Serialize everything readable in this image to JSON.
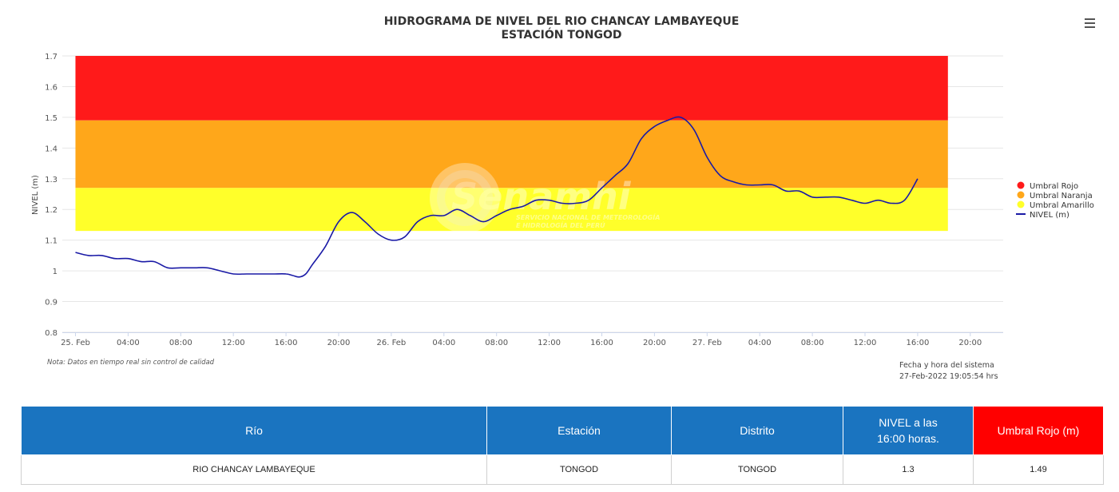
{
  "chart_data": {
    "type": "line",
    "title": "HIDROGRAMA DE NIVEL DEL RIO CHANCAY LAMBAYEQUE",
    "subtitle": "ESTACIÓN TONGOD",
    "xlabel": "",
    "ylabel": "NIVEL (m)",
    "ylim": [
      0.8,
      1.7
    ],
    "y_ticks": [
      "0.8",
      "0.9",
      "1",
      "1.1",
      "1.2",
      "1.3",
      "1.4",
      "1.5",
      "1.6",
      "1.7"
    ],
    "x_ticks": [
      "25. Feb",
      "04:00",
      "08:00",
      "12:00",
      "16:00",
      "20:00",
      "26. Feb",
      "04:00",
      "08:00",
      "12:00",
      "16:00",
      "20:00",
      "27. Feb",
      "04:00",
      "08:00",
      "12:00",
      "16:00",
      "20:00"
    ],
    "x_unit": "hours since 25. Feb 00:00",
    "xlim": [
      -1,
      70.5
    ],
    "grid": true,
    "legend_position": "right",
    "bands": [
      {
        "name": "Umbral Rojo",
        "from": 1.49,
        "to": 1.7,
        "color": "#ff1a1a"
      },
      {
        "name": "Umbral Naranja",
        "from": 1.27,
        "to": 1.49,
        "color": "#ffa71a"
      },
      {
        "name": "Umbral Amarillo",
        "from": 1.13,
        "to": 1.27,
        "color": "#ffff2a"
      }
    ],
    "series": [
      {
        "name": "NIVEL (m)",
        "color": "#1a1aa6",
        "x": [
          0,
          1,
          2,
          3,
          4,
          5,
          6,
          7,
          8,
          9,
          10,
          11,
          12,
          13,
          14,
          15,
          16,
          16.5,
          17,
          17.5,
          18,
          19,
          20,
          21,
          22,
          23,
          24,
          25,
          26,
          27,
          28,
          29,
          30,
          31,
          32,
          33,
          34,
          35,
          36,
          37,
          38,
          39,
          40,
          41,
          42,
          43,
          44,
          45,
          46,
          47,
          48,
          49,
          50,
          51,
          52,
          53,
          54,
          55,
          56,
          57,
          58,
          59,
          60,
          61,
          62,
          63,
          64
        ],
        "y": [
          1.06,
          1.05,
          1.05,
          1.04,
          1.04,
          1.03,
          1.03,
          1.01,
          1.01,
          1.01,
          1.01,
          1.0,
          0.99,
          0.99,
          0.99,
          0.99,
          0.99,
          0.985,
          0.98,
          0.99,
          1.02,
          1.08,
          1.16,
          1.19,
          1.16,
          1.12,
          1.1,
          1.11,
          1.16,
          1.18,
          1.18,
          1.2,
          1.18,
          1.16,
          1.18,
          1.2,
          1.21,
          1.23,
          1.23,
          1.22,
          1.22,
          1.23,
          1.27,
          1.31,
          1.35,
          1.43,
          1.47,
          1.49,
          1.5,
          1.46,
          1.37,
          1.31,
          1.29,
          1.28,
          1.28,
          1.28,
          1.26,
          1.26,
          1.24,
          1.24,
          1.24,
          1.23,
          1.22,
          1.23,
          1.22,
          1.23,
          1.3
        ]
      }
    ],
    "legend": [
      "Umbral Rojo",
      "Umbral Naranja",
      "Umbral Amarillo",
      "NIVEL (m)"
    ]
  },
  "watermark": {
    "brand": "Senamhi",
    "tagline_1": "SERVICIO NACIONAL DE METEOROLOGÍA",
    "tagline_2": "E HIDROLOGÍA DEL PERÚ"
  },
  "note": "Nota: Datos en tiempo real sin control de calidad",
  "system_time": {
    "label": "Fecha y hora del sistema",
    "value": "27-Feb-2022 19:05:54 hrs"
  },
  "menu": {
    "icon": "hamburger-menu-icon"
  },
  "table": {
    "headers": {
      "rio": "Río",
      "estacion": "Estación",
      "distrito": "Distrito",
      "nivel_line1": "NIVEL a las",
      "nivel_line2": "16:00 horas.",
      "umbral": "Umbral Rojo (m)"
    },
    "row": {
      "rio": "RIO CHANCAY LAMBAYEQUE",
      "estacion": "TONGOD",
      "distrito": "TONGOD",
      "nivel": "1.3",
      "umbral": "1.49"
    },
    "colors": {
      "header": "#1a74c0",
      "umbral_header": "#ff0000"
    }
  }
}
